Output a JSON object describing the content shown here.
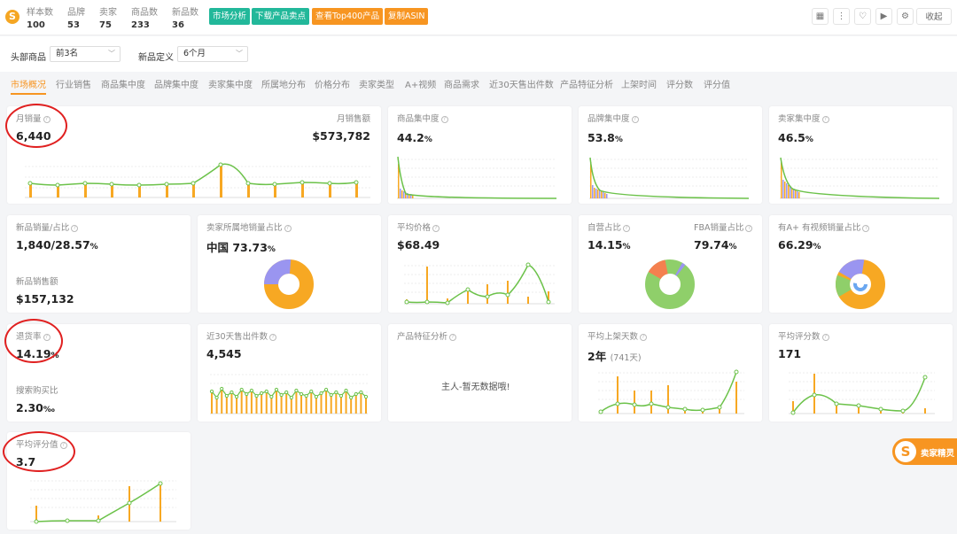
{
  "topbar": {
    "stats": [
      {
        "label": "样本数",
        "value": "100"
      },
      {
        "label": "品牌",
        "value": "53"
      },
      {
        "label": "卖家",
        "value": "75"
      },
      {
        "label": "商品数",
        "value": "233"
      },
      {
        "label": "新品数",
        "value": "36"
      }
    ],
    "buttons": [
      "市场分析",
      "下载产品卖点",
      "查看Top400产品",
      "复制ASIN"
    ],
    "icons": [
      "grid-icon",
      "more-icon",
      "heart-icon",
      "video-icon",
      "settings-icon"
    ],
    "collapse_label": "收起"
  },
  "filters": {
    "head_label": "头部商品",
    "head_value": "前3名",
    "new_label": "新品定义",
    "new_value": "6个月"
  },
  "tabs": [
    "市场概况",
    "行业销售",
    "商品集中度",
    "品牌集中度",
    "卖家集中度",
    "所属地分布",
    "价格分布",
    "卖家类型",
    "A+视频",
    "商品需求",
    "近30天售出件数",
    "产品特征分析",
    "上架时间",
    "评分数",
    "评分值"
  ],
  "cards": {
    "monthly_sales": {
      "title": "月销量",
      "value": "6,440",
      "title2": "月销售额",
      "value2": "$573,782"
    },
    "product_conc": {
      "title": "商品集中度",
      "value": "44.2",
      "unit": "%"
    },
    "brand_conc": {
      "title": "品牌集中度",
      "value": "53.8",
      "unit": "%"
    },
    "seller_conc": {
      "title": "卖家集中度",
      "value": "46.5",
      "unit": "%"
    },
    "new_sales": {
      "title": "新品销量/占比",
      "value": "1,840/28.57",
      "unit": "%",
      "title2": "新品销售额",
      "value2": "$157,132"
    },
    "seller_loc": {
      "title": "卖家所属地销量占比",
      "value": "中国   73.73",
      "unit": "%"
    },
    "avg_price": {
      "title": "平均价格",
      "value": "$68.49"
    },
    "self_op": {
      "title": "自营占比",
      "value": "14.15",
      "unit": "%",
      "title2": "FBA销量占比",
      "value2": "79.74",
      "unit2": "%"
    },
    "aplus": {
      "title": "有A+ 有视频销量占比",
      "value": "66.29",
      "unit": "%"
    },
    "return_rate": {
      "title": "退货率",
      "value": "14.19",
      "unit": "%",
      "title2": "搜索购买比",
      "value2": "2.30",
      "unit2": "‰"
    },
    "sold30": {
      "title": "近30天售出件数",
      "value": "4,545"
    },
    "feature": {
      "title": "产品特征分析",
      "empty": "主人-暂无数据哦!"
    },
    "days_listed": {
      "title": "平均上架天数",
      "value": "2年",
      "sub": "(741天)"
    },
    "avg_reviews": {
      "title": "平均评分数",
      "value": "171"
    },
    "avg_rating": {
      "title": "平均评分值",
      "value": "3.7"
    }
  },
  "badge": {
    "label": "卖家精灵"
  },
  "colors": {
    "bar": "#f7a823",
    "line": "#6cc24a",
    "purple": "#9a95f0",
    "blue": "#6aa7f0",
    "orange_red": "#f4804f",
    "green": "#8fcf6a"
  }
}
